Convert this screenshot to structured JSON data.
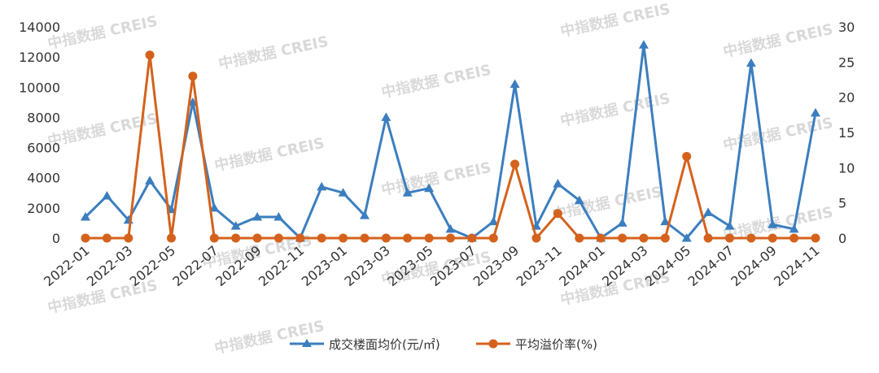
{
  "watermark": "中指数据 CREIS",
  "chart_data": {
    "type": "line",
    "categories": [
      "2022-01",
      "2022-02",
      "2022-03",
      "2022-04",
      "2022-05",
      "2022-06",
      "2022-07",
      "2022-08",
      "2022-09",
      "2022-10",
      "2022-11",
      "2022-12",
      "2023-01",
      "2023-02",
      "2023-03",
      "2023-04",
      "2023-05",
      "2023-06",
      "2023-07",
      "2023-08",
      "2023-09",
      "2023-10",
      "2023-11",
      "2023-12",
      "2024-01",
      "2024-02",
      "2024-03",
      "2024-04",
      "2024-05",
      "2024-06",
      "2024-07",
      "2024-08",
      "2024-09",
      "2024-10",
      "2024-11"
    ],
    "x_tick_labels": [
      "2022-01",
      "2022-03",
      "2022-05",
      "2022-07",
      "2022-09",
      "2022-11",
      "2023-01",
      "2023-03",
      "2023-05",
      "2023-07",
      "2023-09",
      "2023-11",
      "2024-01",
      "2024-03",
      "2024-05",
      "2024-07",
      "2024-09",
      "2024-11"
    ],
    "y_left": {
      "ticks": [
        "0",
        "2000",
        "4000",
        "6000",
        "8000",
        "10000",
        "12000",
        "14000"
      ],
      "ylim": [
        0,
        14000
      ]
    },
    "y_right": {
      "ticks": [
        "0",
        "5",
        "10",
        "15",
        "20",
        "25",
        "30"
      ],
      "ylim": [
        0,
        30
      ]
    },
    "grid": false,
    "legend_position": "bottom",
    "series": [
      {
        "name": "成交楼面均价(元/㎡)",
        "axis": "left",
        "color": "#3b7ebf",
        "marker": "triangle",
        "values": [
          1400,
          2800,
          1200,
          3800,
          1900,
          9000,
          2000,
          800,
          1400,
          1400,
          0,
          3400,
          3000,
          1500,
          8000,
          3000,
          3300,
          600,
          0,
          1100,
          10200,
          800,
          3600,
          2500,
          0,
          1000,
          12800,
          1100,
          0,
          1700,
          800,
          11600,
          900,
          600,
          8300
        ]
      },
      {
        "name": "平均溢价率(%)",
        "axis": "right",
        "color": "#d4621c",
        "marker": "circle",
        "values": [
          0,
          0,
          0,
          26,
          0,
          23,
          0,
          0,
          0,
          0,
          0,
          0,
          0,
          0,
          0,
          0,
          0,
          0,
          0,
          0,
          10.5,
          0,
          3.5,
          0,
          0,
          0,
          0,
          0,
          11.6,
          0,
          0,
          0,
          0,
          0,
          0
        ]
      }
    ]
  }
}
